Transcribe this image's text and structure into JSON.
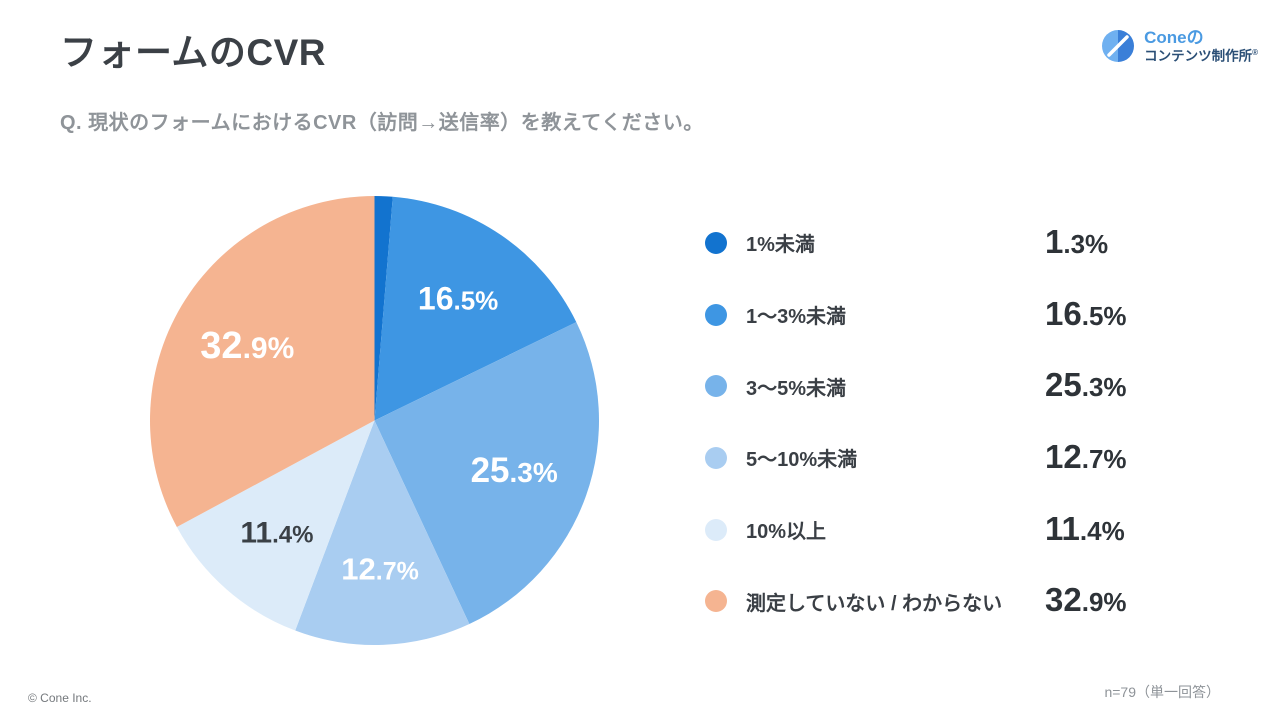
{
  "header": {
    "title": "フォームのCVR",
    "logo": {
      "brand": "Coneの",
      "subtitle": "コンテンツ制作所",
      "registered_mark": "®"
    }
  },
  "question": "Q. 現状のフォームにおけるCVR（訪問→送信率）を教えてください。",
  "chart_data": {
    "type": "pie",
    "title": "フォームのCVR",
    "categories": [
      "1%未満",
      "1〜3%未満",
      "3〜5%未満",
      "5〜10%未満",
      "10%以上",
      "測定していない / わからない"
    ],
    "values": [
      1.3,
      16.5,
      25.3,
      12.7,
      11.4,
      32.9
    ],
    "value_labels": [
      "1.3%",
      "16.5%",
      "25.3%",
      "12.7%",
      "11.4%",
      "32.9%"
    ],
    "colors": [
      "#1273cf",
      "#3e96e3",
      "#77b3ea",
      "#a9cdf1",
      "#dcebf9",
      "#f5b491"
    ],
    "slice_label_colors": [
      "#ffffff",
      "#ffffff",
      "#ffffff",
      "#ffffff",
      "#3a4046",
      "#ffffff"
    ],
    "start_angle_deg": 90,
    "direction": "clockwise",
    "slice_label_min_pct": 5,
    "legend_position": "right",
    "unit": "%"
  },
  "footer": {
    "copyright": "© Cone Inc.",
    "note": "n=79（単一回答）"
  }
}
